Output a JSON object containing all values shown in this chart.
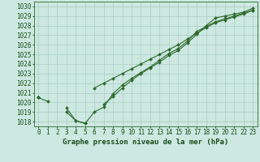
{
  "title": "Graphe pression niveau de la mer (hPa)",
  "x_values": [
    0,
    1,
    2,
    3,
    4,
    5,
    6,
    7,
    8,
    9,
    10,
    11,
    12,
    13,
    14,
    15,
    16,
    17,
    18,
    19,
    20,
    21,
    22,
    23
  ],
  "line1": [
    1020.5,
    1020.1,
    null,
    1019.0,
    1018.1,
    1017.8,
    null,
    1019.8,
    1020.6,
    1021.5,
    1022.3,
    1023.0,
    1023.6,
    1024.2,
    1024.9,
    1025.4,
    1026.2,
    1027.1,
    1028.0,
    1028.8,
    1029.0,
    1029.2,
    1029.4,
    1029.8
  ],
  "line2": [
    1020.5,
    null,
    null,
    1019.4,
    1018.1,
    1017.8,
    1019.0,
    1019.5,
    1020.9,
    1021.8,
    1022.5,
    1023.1,
    1023.7,
    1024.4,
    1025.1,
    1025.6,
    1026.4,
    1027.4,
    1027.9,
    1028.4,
    1028.7,
    1029.0,
    1029.3,
    1029.6
  ],
  "line3": [
    1020.5,
    null,
    null,
    null,
    null,
    null,
    1021.5,
    1022.0,
    1022.5,
    1023.0,
    1023.5,
    1024.0,
    1024.5,
    1025.0,
    1025.5,
    1026.0,
    1026.6,
    1027.2,
    1027.8,
    1028.3,
    1028.6,
    1028.9,
    1029.2,
    1029.6
  ],
  "ylim": [
    1017.5,
    1030.5
  ],
  "xlim": [
    -0.5,
    23.5
  ],
  "yticks": [
    1018,
    1019,
    1020,
    1021,
    1022,
    1023,
    1024,
    1025,
    1026,
    1027,
    1028,
    1029,
    1030
  ],
  "line_color": "#2d6a2d",
  "bg_color": "#cce8e0",
  "grid_color": "#aaccc4",
  "marker": "D",
  "marker_size": 2.0,
  "line_width": 0.8,
  "title_fontsize": 6.5,
  "tick_fontsize": 5.5
}
